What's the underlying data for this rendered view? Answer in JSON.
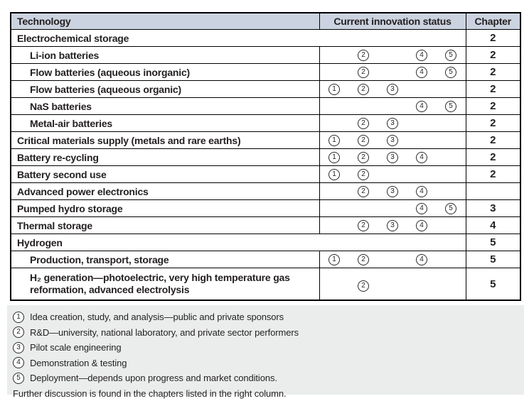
{
  "colors": {
    "header_bg": "#ccd3e0",
    "legend_bg": "#eaedec",
    "border": "#000000",
    "text": "#231f20"
  },
  "table": {
    "header": {
      "technology": "Technology",
      "status": "Current innovation status",
      "chapter": "Chapter"
    },
    "rows": [
      {
        "label": "Electrochemical storage",
        "indent": false,
        "span": true,
        "stages": [],
        "chapter": "2"
      },
      {
        "label": "Li-ion batteries",
        "indent": true,
        "span": false,
        "stages": [
          2,
          4,
          5
        ],
        "chapter": "2"
      },
      {
        "label": "Flow batteries (aqueous inorganic)",
        "indent": true,
        "span": false,
        "stages": [
          2,
          4,
          5
        ],
        "chapter": "2"
      },
      {
        "label": "Flow batteries (aqueous organic)",
        "indent": true,
        "span": false,
        "stages": [
          1,
          2,
          3
        ],
        "chapter": "2"
      },
      {
        "label": "NaS batteries",
        "indent": true,
        "span": false,
        "stages": [
          4,
          5
        ],
        "chapter": "2"
      },
      {
        "label": "Metal-air batteries",
        "indent": true,
        "span": false,
        "stages": [
          2,
          3
        ],
        "chapter": "2"
      },
      {
        "label": "Critical materials supply (metals and rare earths)",
        "indent": false,
        "span": false,
        "stages": [
          1,
          2,
          3
        ],
        "chapter": "2"
      },
      {
        "label": "Battery re-cycling",
        "indent": false,
        "span": false,
        "stages": [
          1,
          2,
          3,
          4
        ],
        "chapter": "2"
      },
      {
        "label": "Battery second use",
        "indent": false,
        "span": false,
        "stages": [
          1,
          2
        ],
        "chapter": "2"
      },
      {
        "label": "Advanced power electronics",
        "indent": false,
        "span": false,
        "stages": [
          2,
          3,
          4
        ],
        "chapter": ""
      },
      {
        "label": "Pumped hydro storage",
        "indent": false,
        "span": false,
        "stages": [
          4,
          5
        ],
        "chapter": "3"
      },
      {
        "label": "Thermal storage",
        "indent": false,
        "span": false,
        "stages": [
          2,
          3,
          4
        ],
        "chapter": "4"
      },
      {
        "label": "Hydrogen",
        "indent": false,
        "span": true,
        "stages": [],
        "chapter": "5"
      },
      {
        "label": "Production, transport, storage",
        "indent": true,
        "span": false,
        "stages": [
          1,
          2,
          4
        ],
        "chapter": "5"
      },
      {
        "label": "H₂ generation—photoelectric, very high temperature gas reformation, advanced electrolysis",
        "indent": true,
        "span": false,
        "stages": [
          2
        ],
        "chapter": "5",
        "tall": true
      }
    ]
  },
  "legend": {
    "items": [
      {
        "num": "1",
        "text": "Idea creation, study, and analysis—public and private sponsors"
      },
      {
        "num": "2",
        "text": "R&D—university, national laboratory, and private sector performers"
      },
      {
        "num": "3",
        "text": "Pilot scale engineering"
      },
      {
        "num": "4",
        "text": "Demonstration & testing"
      },
      {
        "num": "5",
        "text": "Deployment—depends upon progress and market conditions."
      }
    ],
    "footer": "Further discussion is found in the chapters listed in the right column."
  }
}
